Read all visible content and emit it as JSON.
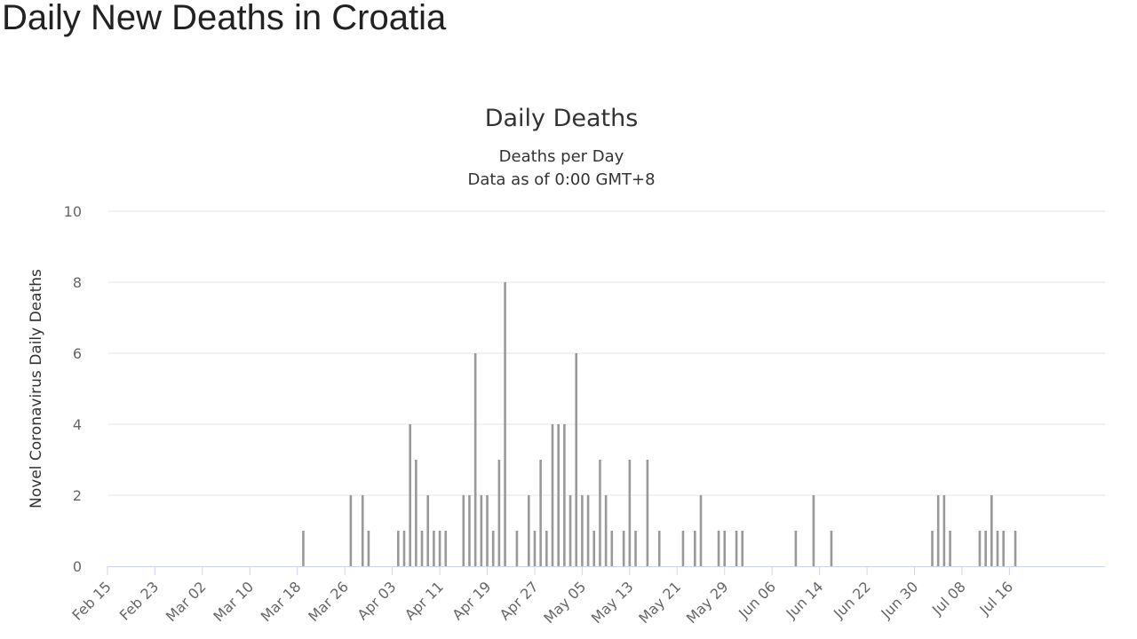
{
  "page": {
    "title": "Daily New Deaths in Croatia"
  },
  "chart_data": {
    "type": "bar",
    "title": "Daily Deaths",
    "subtitle": "Deaths per Day",
    "subtitle2": "Data as of 0:00 GMT+8",
    "xlabel": "",
    "ylabel": "Novel Coronavirus Daily Deaths",
    "ylim": [
      0,
      10
    ],
    "yticks": [
      0,
      2,
      4,
      6,
      8,
      10
    ],
    "grid": true,
    "legend": "none",
    "start_date": "Feb 15",
    "x_tick_labels": [
      "Feb 15",
      "Feb 23",
      "Mar 02",
      "Mar 10",
      "Mar 18",
      "Mar 26",
      "Apr 03",
      "Apr 11",
      "Apr 19",
      "Apr 27",
      "May 05",
      "May 13",
      "May 21",
      "May 29",
      "Jun 06",
      "Jun 14",
      "Jun 22",
      "Jun 30",
      "Jul 08",
      "Jul 16"
    ],
    "x_tick_day_interval": 8,
    "num_days": 154,
    "series": [
      {
        "name": "Daily Deaths",
        "values": [
          0,
          0,
          0,
          0,
          0,
          0,
          0,
          0,
          0,
          0,
          0,
          0,
          0,
          0,
          0,
          0,
          0,
          0,
          0,
          0,
          0,
          0,
          0,
          0,
          0,
          0,
          0,
          0,
          0,
          0,
          0,
          0,
          0,
          1,
          0,
          0,
          0,
          0,
          0,
          0,
          0,
          2,
          0,
          2,
          1,
          0,
          0,
          0,
          0,
          1,
          1,
          4,
          3,
          1,
          2,
          1,
          1,
          1,
          0,
          0,
          2,
          2,
          6,
          2,
          2,
          1,
          3,
          8,
          0,
          1,
          0,
          2,
          1,
          3,
          1,
          4,
          4,
          4,
          2,
          6,
          2,
          2,
          1,
          3,
          2,
          1,
          0,
          1,
          3,
          1,
          0,
          3,
          0,
          1,
          0,
          0,
          0,
          1,
          0,
          1,
          2,
          0,
          0,
          1,
          1,
          0,
          1,
          1,
          0,
          0,
          0,
          0,
          0,
          0,
          0,
          0,
          1,
          0,
          0,
          2,
          0,
          0,
          1,
          0,
          0,
          0,
          0,
          0,
          0,
          0,
          0,
          0,
          0,
          0,
          0,
          0,
          0,
          0,
          0,
          1,
          2,
          2,
          1,
          0,
          0,
          0,
          0,
          1,
          1,
          2,
          1,
          1,
          0,
          1
        ]
      }
    ],
    "colors": {
      "bar": "#999999",
      "gridline": "#e6e6e6",
      "axis": "#ccd6eb",
      "text": "#333333",
      "label": "#666666"
    }
  }
}
